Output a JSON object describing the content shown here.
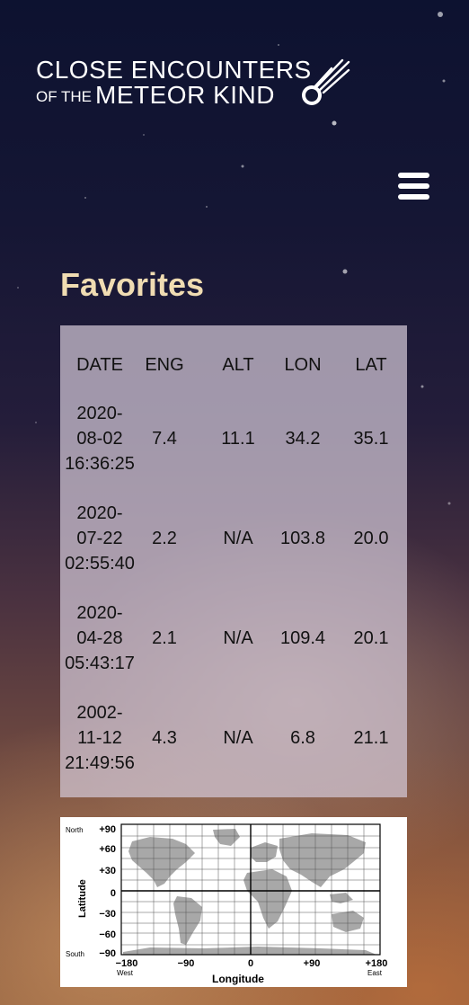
{
  "logo": {
    "line1": "CLOSE ENCOUNTERS",
    "line2_small": "OF THE",
    "line2_big": "METEOR KIND",
    "icon": "comet-icon"
  },
  "menu": {
    "icon": "hamburger-menu-icon"
  },
  "page_title": "Favorites",
  "table": {
    "headers": [
      "DATE",
      "ENG",
      "ALT",
      "LON",
      "LAT"
    ],
    "rows": [
      {
        "date": [
          "2020-",
          "08-02",
          "16:36:25"
        ],
        "eng": "7.4",
        "alt": "11.1",
        "lon": "34.2",
        "lat": "35.1"
      },
      {
        "date": [
          "2020-",
          "07-22",
          "02:55:40"
        ],
        "eng": "2.2",
        "alt": "N/A",
        "lon": "103.8",
        "lat": "20.0"
      },
      {
        "date": [
          "2020-",
          "04-28",
          "05:43:17"
        ],
        "eng": "2.1",
        "alt": "N/A",
        "lon": "109.4",
        "lat": "20.1"
      },
      {
        "date": [
          "2002-",
          "11-12",
          "21:49:56"
        ],
        "eng": "4.3",
        "alt": "N/A",
        "lon": "6.8",
        "lat": "21.1"
      }
    ]
  },
  "map": {
    "north": "North",
    "south": "South",
    "west": "West",
    "east": "East",
    "y_axis_label": "Latitude",
    "x_axis_label": "Longitude",
    "lat_ticks": [
      "+90",
      "+60",
      "+30",
      "0",
      "−30",
      "−60",
      "−90"
    ],
    "lon_ticks": [
      "−180",
      "−90",
      "0",
      "+90",
      "+180"
    ],
    "degree": "°"
  },
  "colors": {
    "title": "#f0dcb2",
    "panel": "#d2c8d7",
    "land": "#a8a8a8"
  }
}
